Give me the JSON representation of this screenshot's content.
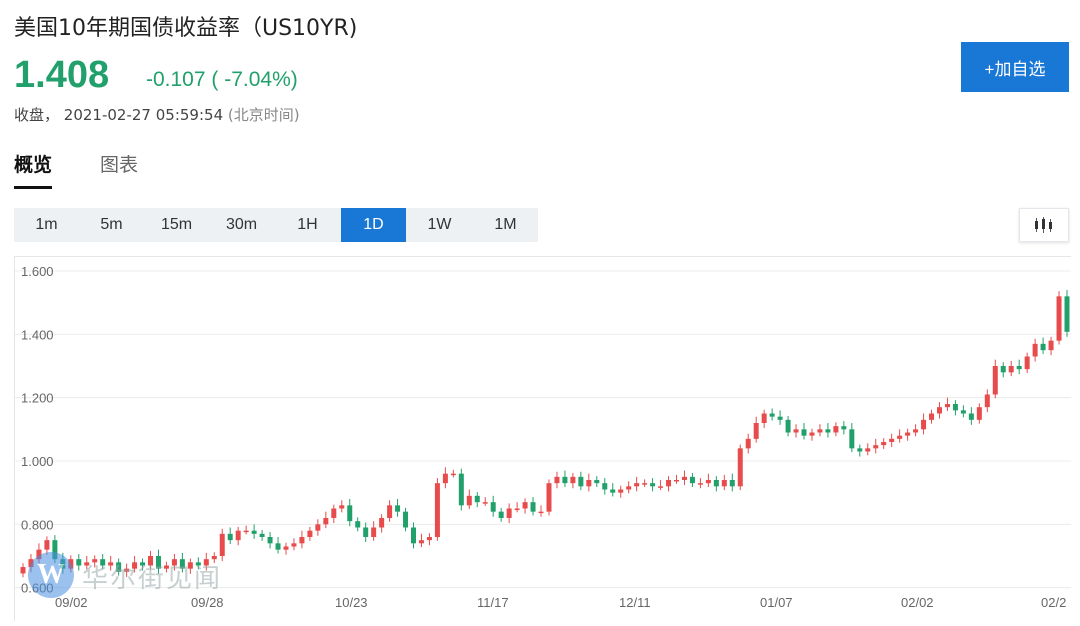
{
  "header": {
    "title": "美国10年期国债收益率（US10YR)",
    "price": "1.408",
    "change": "-0.107 ( -7.04%)",
    "status_label": "收盘，",
    "status_time": "2021-02-27 05:59:54",
    "status_tz": "(北京时间)",
    "add_button": "+加自选",
    "colors": {
      "down": "#22a06b",
      "up": "#e84b4b",
      "accent": "#1978d6"
    }
  },
  "tabs": [
    {
      "label": "概览",
      "active": true
    },
    {
      "label": "图表",
      "active": false
    }
  ],
  "intervals": [
    {
      "label": "1m",
      "active": false
    },
    {
      "label": "5m",
      "active": false
    },
    {
      "label": "15m",
      "active": false
    },
    {
      "label": "30m",
      "active": false
    },
    {
      "label": "1H",
      "active": false
    },
    {
      "label": "1D",
      "active": true
    },
    {
      "label": "1W",
      "active": false
    },
    {
      "label": "1M",
      "active": false
    }
  ],
  "chart_type_icon": "candlestick-icon",
  "watermark": {
    "logo": "W",
    "text": "华尔街见闻"
  },
  "chart_data": {
    "type": "candlestick",
    "y_ticks": [
      "1.600",
      "1.400",
      "1.200",
      "1.000",
      "0.800",
      "0.600"
    ],
    "x_ticks": [
      "09/02",
      "09/28",
      "10/23",
      "11/17",
      "12/11",
      "01/07",
      "02/02",
      "02/2"
    ],
    "ylim": [
      0.58,
      1.6
    ],
    "grid": true,
    "series": [
      {
        "name": "",
        "values": [
          0.665,
          0.69,
          0.72,
          0.75,
          0.69,
          0.66,
          0.69,
          0.67,
          0.68,
          0.69,
          0.67,
          0.68,
          0.65,
          0.66,
          0.68,
          0.67,
          0.7,
          0.66,
          0.67,
          0.69,
          0.66,
          0.68,
          0.67,
          0.69,
          0.7,
          0.77,
          0.75,
          0.78,
          0.78,
          0.77,
          0.76,
          0.74,
          0.72,
          0.73,
          0.74,
          0.76,
          0.78,
          0.8,
          0.82,
          0.85,
          0.86,
          0.81,
          0.79,
          0.76,
          0.79,
          0.82,
          0.86,
          0.84,
          0.79,
          0.74,
          0.75,
          0.76,
          0.93,
          0.96,
          0.96,
          0.86,
          0.89,
          0.87,
          0.87,
          0.84,
          0.82,
          0.85,
          0.85,
          0.87,
          0.84,
          0.84,
          0.93,
          0.95,
          0.93,
          0.95,
          0.92,
          0.94,
          0.93,
          0.91,
          0.9,
          0.91,
          0.92,
          0.93,
          0.93,
          0.92,
          0.92,
          0.94,
          0.94,
          0.95,
          0.93,
          0.93,
          0.94,
          0.92,
          0.94,
          0.92,
          1.04,
          1.07,
          1.12,
          1.15,
          1.14,
          1.13,
          1.09,
          1.1,
          1.08,
          1.09,
          1.1,
          1.09,
          1.11,
          1.1,
          1.04,
          1.03,
          1.04,
          1.05,
          1.06,
          1.07,
          1.08,
          1.09,
          1.1,
          1.13,
          1.15,
          1.17,
          1.18,
          1.16,
          1.15,
          1.13,
          1.17,
          1.21,
          1.3,
          1.28,
          1.3,
          1.29,
          1.33,
          1.37,
          1.35,
          1.38,
          1.52,
          1.408
        ]
      }
    ]
  }
}
